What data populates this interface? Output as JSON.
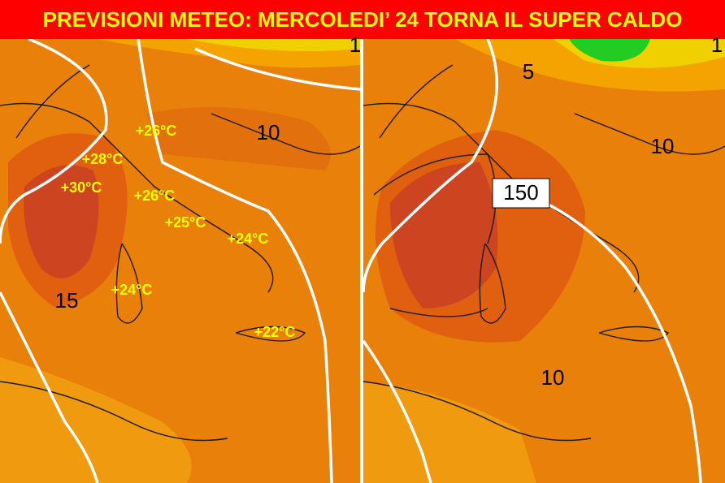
{
  "header": {
    "title": "PREVISIONI METEO: MERCOLEDI’ 24 TORNA IL SUPER CALDO"
  },
  "left_map": {
    "temperature_labels": [
      "+26°C",
      "+28°C",
      "+30°C",
      "+26°C",
      "+25°C",
      "+24°C",
      "+24°C",
      "+22°C"
    ],
    "contour_labels": [
      "10",
      "15",
      "1"
    ]
  },
  "right_map": {
    "contour_labels": [
      "5",
      "10",
      "150",
      "10",
      "1"
    ]
  }
}
